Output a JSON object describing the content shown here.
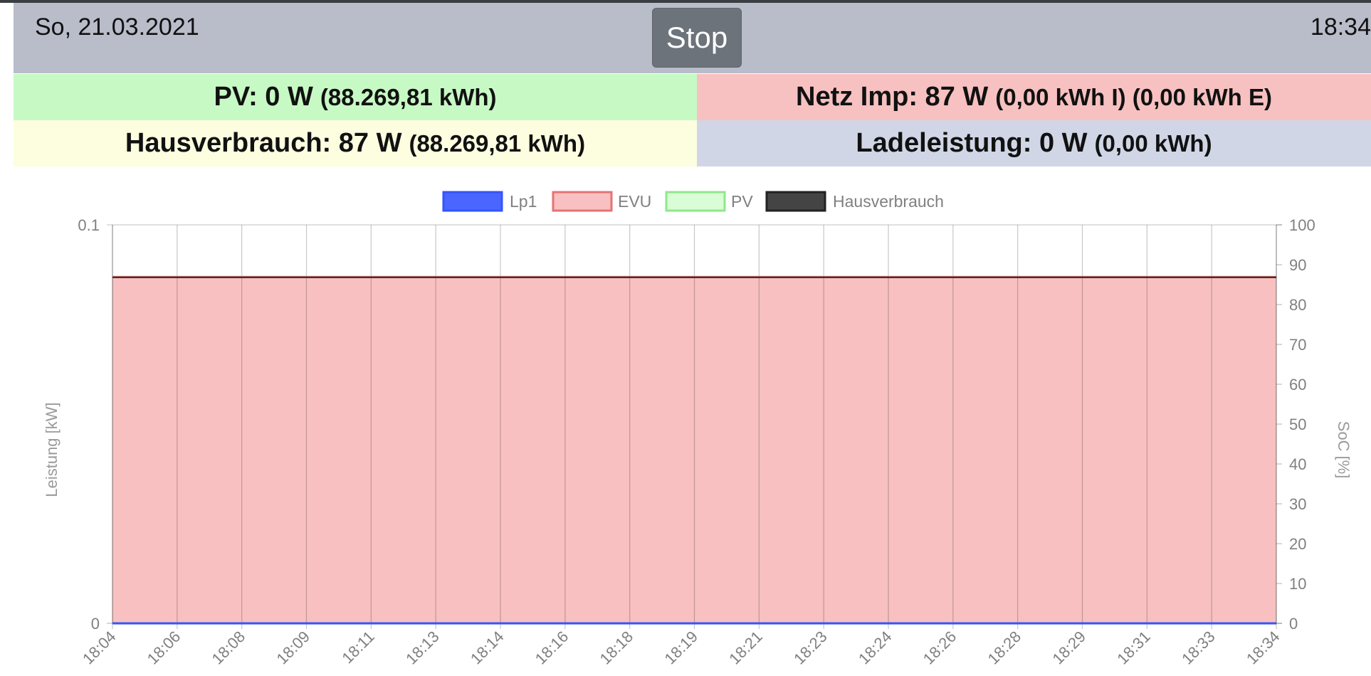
{
  "header": {
    "date": "So, 21.03.2021",
    "time": "18:34",
    "stop_label": "Stop"
  },
  "tiles": {
    "pv": {
      "main": "PV: 0 W",
      "sub": "(88.269,81 kWh)"
    },
    "netz": {
      "main": "Netz Imp: 87 W",
      "sub": "(0,00 kWh I) (0,00 kWh E)"
    },
    "haus": {
      "main": "Hausverbrauch: 87 W",
      "sub": "(88.269,81 kWh)"
    },
    "lade": {
      "main": "Ladeleistung: 0 W",
      "sub": "(0,00 kWh)"
    }
  },
  "colors": {
    "header_bg": "#b9bcc9",
    "pv_bg": "#c7f9c5",
    "netz_bg": "#f6c1c0",
    "haus_bg": "#fdfee0",
    "lade_bg": "#d0d6e5",
    "stop_bg": "#6c737b"
  },
  "chart_data": {
    "type": "area",
    "x": [
      "18:04",
      "18:06",
      "18:08",
      "18:09",
      "18:11",
      "18:13",
      "18:14",
      "18:16",
      "18:18",
      "18:19",
      "18:21",
      "18:23",
      "18:24",
      "18:26",
      "18:28",
      "18:29",
      "18:31",
      "18:33",
      "18:34"
    ],
    "series": [
      {
        "name": "Lp1",
        "color": "#3355ff",
        "fill": "#4a66ff",
        "values": [
          0,
          0,
          0,
          0,
          0,
          0,
          0,
          0,
          0,
          0,
          0,
          0,
          0,
          0,
          0,
          0,
          0,
          0,
          0
        ]
      },
      {
        "name": "EVU",
        "color": "#e57373",
        "fill": "#f8c0c0",
        "values": [
          0.087,
          0.087,
          0.087,
          0.087,
          0.087,
          0.087,
          0.087,
          0.087,
          0.087,
          0.087,
          0.087,
          0.087,
          0.087,
          0.087,
          0.087,
          0.087,
          0.087,
          0.087,
          0.087
        ]
      },
      {
        "name": "PV",
        "color": "#8fe88a",
        "fill": "#d9fdd6",
        "values": [
          0,
          0,
          0,
          0,
          0,
          0,
          0,
          0,
          0,
          0,
          0,
          0,
          0,
          0,
          0,
          0,
          0,
          0,
          0
        ]
      },
      {
        "name": "Hausverbrauch",
        "color": "#222222",
        "fill": "#444444",
        "values": [
          0.087,
          0.087,
          0.087,
          0.087,
          0.087,
          0.087,
          0.087,
          0.087,
          0.087,
          0.087,
          0.087,
          0.087,
          0.087,
          0.087,
          0.087,
          0.087,
          0.087,
          0.087,
          0.087
        ]
      }
    ],
    "ylabel": "Leistung [kW]",
    "ylim": [
      0,
      0.1
    ],
    "y_ticks": [
      "0",
      "0.1"
    ],
    "y2label": "SoC [%]",
    "y2lim": [
      0,
      100
    ],
    "y2_ticks": [
      "0",
      "10",
      "20",
      "30",
      "40",
      "50",
      "60",
      "70",
      "80",
      "90",
      "100"
    ],
    "legend": "top",
    "grid": true
  }
}
